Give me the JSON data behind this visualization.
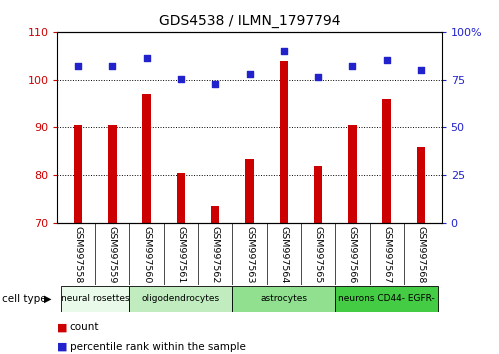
{
  "title": "GDS4538 / ILMN_1797794",
  "samples": [
    "GSM997558",
    "GSM997559",
    "GSM997560",
    "GSM997561",
    "GSM997562",
    "GSM997563",
    "GSM997564",
    "GSM997565",
    "GSM997566",
    "GSM997567",
    "GSM997568"
  ],
  "counts": [
    90.5,
    90.5,
    97.0,
    80.5,
    73.5,
    83.5,
    104.0,
    82.0,
    90.5,
    96.0,
    86.0
  ],
  "percentile_ranks": [
    82.0,
    82.0,
    86.5,
    75.5,
    72.5,
    78.0,
    90.0,
    76.5,
    82.0,
    85.5,
    80.0
  ],
  "ylim_left": [
    70,
    110
  ],
  "yticks_left": [
    70,
    80,
    90,
    100,
    110
  ],
  "ylim_right": [
    0,
    100
  ],
  "yticks_right": [
    0,
    25,
    50,
    75,
    100
  ],
  "yright_labels": [
    "0",
    "25",
    "50",
    "75",
    "100%"
  ],
  "bar_color": "#cc0000",
  "dot_color": "#2222cc",
  "bar_width": 0.25,
  "cell_type_groups": [
    {
      "label": "neural rosettes",
      "start": 0,
      "end": 1,
      "color": "#eafaea"
    },
    {
      "label": "oligodendrocytes",
      "start": 2,
      "end": 4,
      "color": "#c0ecc0"
    },
    {
      "label": "astrocytes",
      "start": 5,
      "end": 7,
      "color": "#90e090"
    },
    {
      "label": "neurons CD44- EGFR-",
      "start": 8,
      "end": 10,
      "color": "#44cc44"
    }
  ],
  "cell_type_label": "cell type",
  "legend_count_label": "count",
  "legend_pct_label": "percentile rank within the sample",
  "background_color": "#ffffff",
  "tick_label_color_left": "#cc0000",
  "tick_label_color_right": "#2222cc",
  "xlabel_bg_color": "#d4d4d4"
}
